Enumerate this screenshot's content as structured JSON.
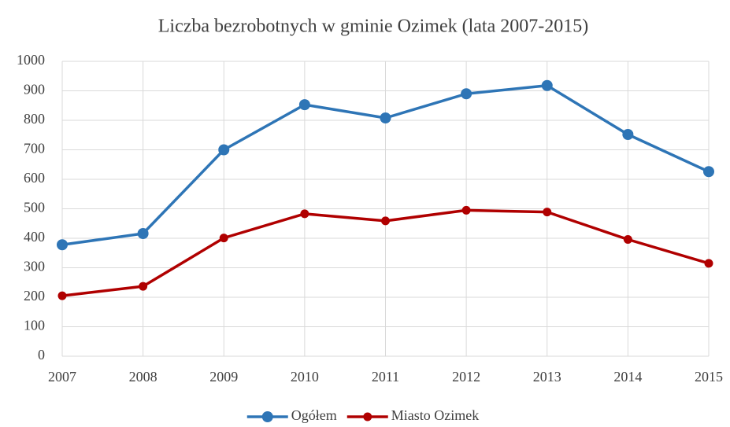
{
  "chart_data": {
    "type": "line",
    "title": "Liczba bezrobotnych w gminie Ozimek (lata 2007-2015)",
    "categories": [
      "2007",
      "2008",
      "2009",
      "2010",
      "2011",
      "2012",
      "2013",
      "2014",
      "2015"
    ],
    "series": [
      {
        "name": "Ogółem",
        "color": "#2e75b6",
        "values": [
          378,
          416,
          700,
          853,
          808,
          890,
          918,
          752,
          626
        ]
      },
      {
        "name": "Miasto Ozimek",
        "color": "#b00000",
        "values": [
          205,
          237,
          401,
          483,
          459,
          495,
          489,
          396,
          315
        ]
      }
    ],
    "ylim": [
      0,
      1000
    ],
    "yticks": [
      0,
      100,
      200,
      300,
      400,
      500,
      600,
      700,
      800,
      900,
      1000
    ],
    "grid": true,
    "legend": "bottom"
  }
}
